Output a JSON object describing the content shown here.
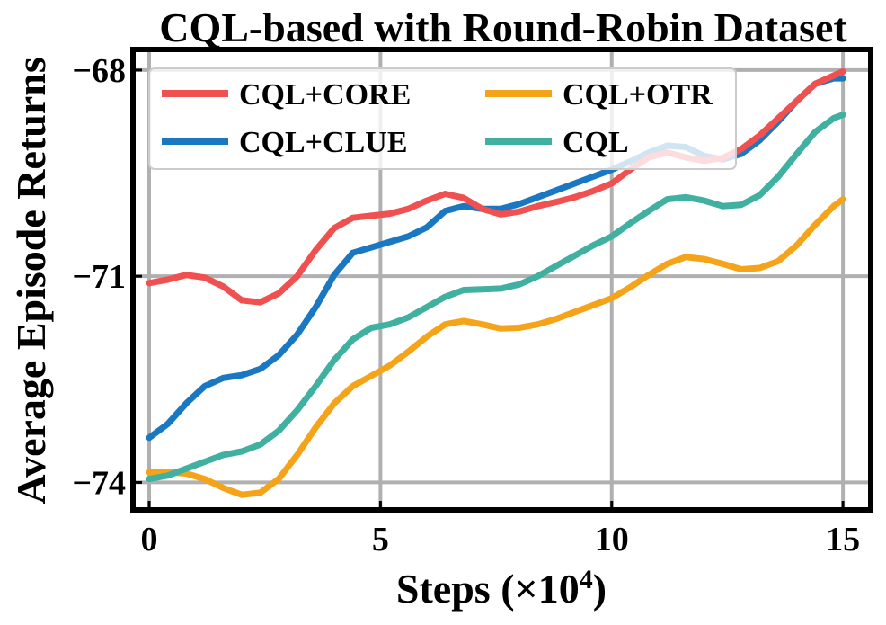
{
  "chart_data": {
    "type": "line",
    "title": "CQL-based with Round-Robin Dataset",
    "xlabel": "Steps (×10",
    "xlabel_exponent": "4",
    "xlabel_close": ")",
    "ylabel": "Average Episode Returns",
    "xlim": [
      -0.35,
      15.6
    ],
    "ylim": [
      -74.4,
      -67.7
    ],
    "xticks": [
      0,
      5,
      10,
      15
    ],
    "xtick_labels": [
      "0",
      "5",
      "10",
      "15"
    ],
    "yticks": [
      -74,
      -71,
      -68
    ],
    "ytick_labels": [
      "−74",
      "−71",
      "−68"
    ],
    "grid": true,
    "legend_location": "top-left",
    "x": [
      0,
      0.4,
      0.8,
      1.2,
      1.6,
      2.0,
      2.4,
      2.8,
      3.2,
      3.6,
      4.0,
      4.4,
      4.8,
      5.2,
      5.6,
      6.0,
      6.4,
      6.8,
      7.2,
      7.6,
      8.0,
      8.4,
      8.8,
      9.2,
      9.6,
      10.0,
      10.4,
      10.8,
      11.2,
      11.6,
      12.0,
      12.4,
      12.8,
      13.2,
      13.6,
      14.0,
      14.4,
      14.8,
      15.0
    ],
    "series": [
      {
        "name": "CQL+CORE",
        "color": "#f05050",
        "values": [
          -71.1,
          -71.05,
          -70.98,
          -71.02,
          -71.15,
          -71.35,
          -71.38,
          -71.25,
          -71.0,
          -70.62,
          -70.3,
          -70.15,
          -70.12,
          -70.09,
          -70.02,
          -69.9,
          -69.8,
          -69.86,
          -70.02,
          -70.1,
          -70.06,
          -69.98,
          -69.92,
          -69.85,
          -69.76,
          -69.65,
          -69.45,
          -69.27,
          -69.2,
          -69.27,
          -69.32,
          -69.28,
          -69.15,
          -68.95,
          -68.7,
          -68.45,
          -68.2,
          -68.08,
          -68.02
        ]
      },
      {
        "name": "CQL+OTR",
        "color": "#f5a41a",
        "values": [
          -73.85,
          -73.85,
          -73.87,
          -73.95,
          -74.08,
          -74.18,
          -74.15,
          -73.95,
          -73.6,
          -73.2,
          -72.85,
          -72.6,
          -72.45,
          -72.3,
          -72.1,
          -71.88,
          -71.7,
          -71.65,
          -71.7,
          -71.76,
          -71.75,
          -71.7,
          -71.62,
          -71.52,
          -71.42,
          -71.32,
          -71.16,
          -70.98,
          -70.82,
          -70.72,
          -70.75,
          -70.82,
          -70.9,
          -70.88,
          -70.78,
          -70.55,
          -70.25,
          -69.98,
          -69.88
        ]
      },
      {
        "name": "CQL+CLUE",
        "color": "#1a78c2",
        "values": [
          -73.35,
          -73.15,
          -72.85,
          -72.6,
          -72.48,
          -72.44,
          -72.35,
          -72.15,
          -71.85,
          -71.45,
          -70.98,
          -70.66,
          -70.58,
          -70.5,
          -70.42,
          -70.29,
          -70.05,
          -69.98,
          -70.02,
          -70.02,
          -69.95,
          -69.85,
          -69.75,
          -69.65,
          -69.55,
          -69.45,
          -69.33,
          -69.2,
          -69.1,
          -69.12,
          -69.25,
          -69.3,
          -69.22,
          -69.02,
          -68.75,
          -68.45,
          -68.2,
          -68.12,
          -68.12
        ]
      },
      {
        "name": "CQL",
        "color": "#40b0a0",
        "values": [
          -73.95,
          -73.9,
          -73.8,
          -73.7,
          -73.6,
          -73.55,
          -73.45,
          -73.25,
          -72.95,
          -72.6,
          -72.22,
          -71.92,
          -71.75,
          -71.7,
          -71.6,
          -71.45,
          -71.3,
          -71.2,
          -71.19,
          -71.18,
          -71.12,
          -71.0,
          -70.85,
          -70.7,
          -70.55,
          -70.42,
          -70.23,
          -70.05,
          -69.88,
          -69.85,
          -69.9,
          -69.98,
          -69.96,
          -69.82,
          -69.55,
          -69.22,
          -68.9,
          -68.7,
          -68.65
        ]
      }
    ],
    "legend_order": [
      "CQL+CORE",
      "CQL+OTR",
      "CQL+CLUE",
      "CQL"
    ]
  }
}
